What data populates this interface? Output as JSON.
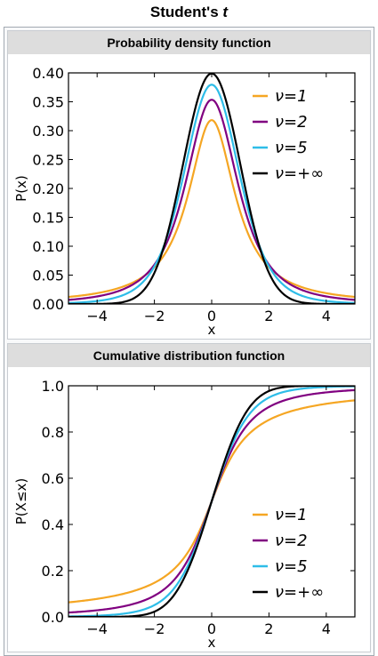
{
  "title_main": "Student's ",
  "title_var": "t",
  "colors": {
    "nu1": "#f5a623",
    "nu2": "#800080",
    "nu5": "#2ebde8",
    "nuinf": "#000000"
  },
  "chart_data": [
    {
      "type": "line",
      "section_title": "Probability density function",
      "xlabel": "x",
      "ylabel": "P(x)",
      "xlim": [
        -5,
        5
      ],
      "ylim": [
        0,
        0.4
      ],
      "xticks": [
        -4,
        -2,
        0,
        2,
        4
      ],
      "xtick_labels": [
        "−4",
        "−2",
        "0",
        "2",
        "4"
      ],
      "yticks": [
        0,
        0.05,
        0.1,
        0.15,
        0.2,
        0.25,
        0.3,
        0.35,
        0.4
      ],
      "ytick_labels": [
        "0.00",
        "0.05",
        "0.10",
        "0.15",
        "0.20",
        "0.25",
        "0.30",
        "0.35",
        "0.40"
      ],
      "legend_position": "top-right",
      "series": [
        {
          "name": "ν=1",
          "color": "#f5a623",
          "x": [
            -5,
            -4,
            -3,
            -2,
            -1.5,
            -1,
            -0.5,
            0,
            0.5,
            1,
            1.5,
            2,
            3,
            4,
            5
          ],
          "y": [
            0.0122,
            0.0187,
            0.0318,
            0.0637,
            0.0979,
            0.1592,
            0.2546,
            0.3183,
            0.2546,
            0.1592,
            0.0979,
            0.0637,
            0.0318,
            0.0187,
            0.0122
          ]
        },
        {
          "name": "ν=2",
          "color": "#800080",
          "x": [
            -5,
            -4,
            -3,
            -2,
            -1.5,
            -1,
            -0.5,
            0,
            0.5,
            1,
            1.5,
            2,
            3,
            4,
            5
          ],
          "y": [
            0.0071,
            0.0131,
            0.0274,
            0.068,
            0.1126,
            0.1925,
            0.2962,
            0.3536,
            0.2962,
            0.1925,
            0.1126,
            0.068,
            0.0274,
            0.0131,
            0.0071
          ]
        },
        {
          "name": "ν=5",
          "color": "#2ebde8",
          "x": [
            -5,
            -4,
            -3,
            -2,
            -1.5,
            -1,
            -0.5,
            0,
            0.5,
            1,
            1.5,
            2,
            3,
            4,
            5
          ],
          "y": [
            0.0018,
            0.0051,
            0.0173,
            0.0651,
            0.1245,
            0.2197,
            0.3279,
            0.3796,
            0.3279,
            0.2197,
            0.1245,
            0.0651,
            0.0173,
            0.0051,
            0.0018
          ]
        },
        {
          "name": "ν=+∞",
          "color": "#000000",
          "x": [
            -5,
            -4,
            -3,
            -2,
            -1.5,
            -1,
            -0.5,
            0,
            0.5,
            1,
            1.5,
            2,
            3,
            4,
            5
          ],
          "y": [
            1.5e-06,
            0.0001,
            0.0044,
            0.054,
            0.1295,
            0.242,
            0.3521,
            0.3989,
            0.3521,
            0.242,
            0.1295,
            0.054,
            0.0044,
            0.0001,
            1.5e-06
          ]
        }
      ]
    },
    {
      "type": "line",
      "section_title": "Cumulative distribution function",
      "xlabel": "x",
      "ylabel": "P(X≤x)",
      "xlim": [
        -5,
        5
      ],
      "ylim": [
        0,
        1
      ],
      "xticks": [
        -4,
        -2,
        0,
        2,
        4
      ],
      "xtick_labels": [
        "−4",
        "−2",
        "0",
        "2",
        "4"
      ],
      "yticks": [
        0,
        0.2,
        0.4,
        0.6,
        0.8,
        1.0
      ],
      "ytick_labels": [
        "0.0",
        "0.2",
        "0.4",
        "0.6",
        "0.8",
        "1.0"
      ],
      "legend_position": "bottom-right",
      "series": [
        {
          "name": "ν=1",
          "color": "#f5a623",
          "x": [
            -5,
            -4,
            -3,
            -2,
            -1.5,
            -1,
            -0.5,
            0,
            0.5,
            1,
            1.5,
            2,
            3,
            4,
            5
          ],
          "y": [
            0.0628,
            0.078,
            0.1024,
            0.1476,
            0.1872,
            0.25,
            0.3524,
            0.5,
            0.6476,
            0.75,
            0.8128,
            0.8524,
            0.8976,
            0.922,
            0.9372
          ]
        },
        {
          "name": "ν=2",
          "color": "#800080",
          "x": [
            -5,
            -4,
            -3,
            -2,
            -1.5,
            -1,
            -0.5,
            0,
            0.5,
            1,
            1.5,
            2,
            3,
            4,
            5
          ],
          "y": [
            0.0189,
            0.0286,
            0.0477,
            0.0918,
            0.1361,
            0.2113,
            0.3333,
            0.5,
            0.6667,
            0.7887,
            0.8639,
            0.9082,
            0.9523,
            0.9714,
            0.9811
          ]
        },
        {
          "name": "ν=5",
          "color": "#2ebde8",
          "x": [
            -5,
            -4,
            -3,
            -2,
            -1.5,
            -1,
            -0.5,
            0,
            0.5,
            1,
            1.5,
            2,
            3,
            4,
            5
          ],
          "y": [
            0.0021,
            0.0052,
            0.015,
            0.051,
            0.097,
            0.1816,
            0.3191,
            0.5,
            0.6809,
            0.8184,
            0.903,
            0.949,
            0.985,
            0.9948,
            0.9979
          ]
        },
        {
          "name": "ν=+∞",
          "color": "#000000",
          "x": [
            -5,
            -4,
            -3,
            -2,
            -1.5,
            -1,
            -0.5,
            0,
            0.5,
            1,
            1.5,
            2,
            3,
            4,
            5
          ],
          "y": [
            3e-07,
            3e-05,
            0.0013,
            0.0228,
            0.0668,
            0.1587,
            0.3085,
            0.5,
            0.6915,
            0.8413,
            0.9332,
            0.9772,
            0.9987,
            0.99997,
            0.9999997
          ]
        }
      ]
    }
  ]
}
